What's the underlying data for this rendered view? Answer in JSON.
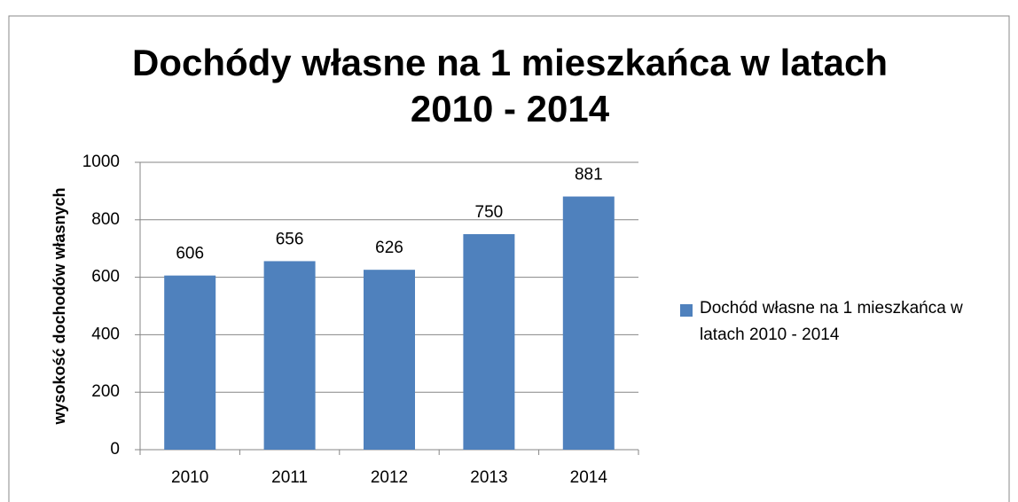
{
  "chart_data": {
    "type": "bar",
    "title": "Dochódy własne na 1 mieszkańca w latach 2010 - 2014",
    "y_label": "wysokość dochodów własnych",
    "categories": [
      "2010",
      "2011",
      "2012",
      "2013",
      "2014"
    ],
    "series": [
      {
        "name": "Dochód własne na 1 mieszkańca w latach 2010 - 2014",
        "color": "#4f81bd",
        "values": [
          606,
          656,
          626,
          750,
          881
        ]
      }
    ],
    "ylim": [
      0,
      1000
    ],
    "yticks": [
      0,
      200,
      400,
      600,
      800,
      1000
    ],
    "grid": true,
    "legend": "right"
  }
}
